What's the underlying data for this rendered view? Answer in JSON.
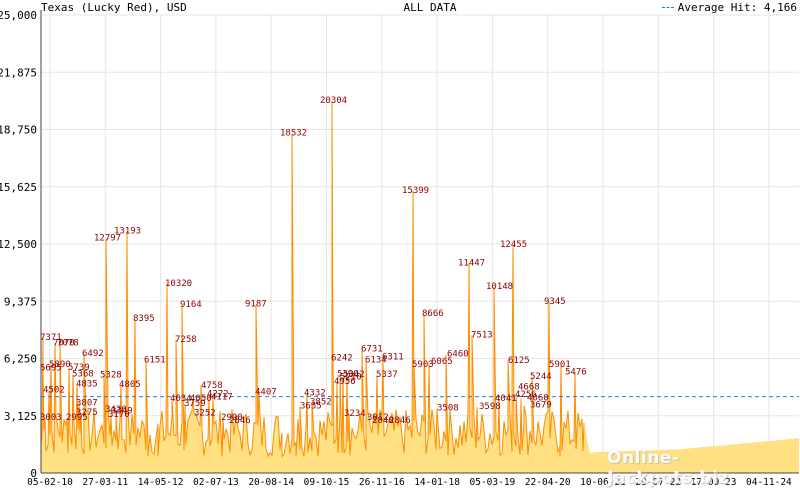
{
  "header": {
    "left_label": "Texas (Lucky Red), USD",
    "center_label": "ALL DATA",
    "legend_label": "Average Hit: 4,166"
  },
  "watermark": "Online-Jackpots.biz",
  "colors": {
    "fill": "#ffe083",
    "line": "#ff8c00",
    "label": "#8b0000",
    "average": "#2a7fd4",
    "grid": "#e6e6e6",
    "axis": "#444444"
  },
  "chart_data": {
    "type": "area",
    "title": "ALL DATA",
    "ylim": [
      0,
      25000
    ],
    "y_ticks": [
      0,
      3125,
      6250,
      9375,
      12500,
      15625,
      18750,
      21875,
      25000
    ],
    "y_tick_labels": [
      "0",
      "3,125",
      "6,250",
      "9,375",
      "12,500",
      "15,625",
      "18,750",
      "21,875",
      "25,000"
    ],
    "x_tick_labels": [
      "05-02-10",
      "27-03-11",
      "14-05-12",
      "02-07-13",
      "20-08-14",
      "09-10-15",
      "26-11-16",
      "14-01-18",
      "05-03-19",
      "22-04-20",
      "10-06-21",
      "29-07-22",
      "17-09-23",
      "04-11-24"
    ],
    "grid": true,
    "average_hit": 4166,
    "legend_position": "top-right",
    "labeled_hits": [
      {
        "value": 7371,
        "label": "7371"
      },
      {
        "value": 5695,
        "label": "5695"
      },
      {
        "value": 4502,
        "label": "4502"
      },
      {
        "value": 3003,
        "label": "3003"
      },
      {
        "value": 5890,
        "label": "5890"
      },
      {
        "value": 7070,
        "label": "7070"
      },
      {
        "value": 7078,
        "label": "7078"
      },
      {
        "value": 2995,
        "label": "2995"
      },
      {
        "value": 5739,
        "label": "5739"
      },
      {
        "value": 5368,
        "label": "5368"
      },
      {
        "value": 4835,
        "label": "4835"
      },
      {
        "value": 3807,
        "label": "3807"
      },
      {
        "value": 3275,
        "label": "3275"
      },
      {
        "value": 6492,
        "label": "6492"
      },
      {
        "value": 12797,
        "label": "12797"
      },
      {
        "value": 5328,
        "label": "5328"
      },
      {
        "value": 3426,
        "label": "3426"
      },
      {
        "value": 3170,
        "label": "3170"
      },
      {
        "value": 3349,
        "label": "3349"
      },
      {
        "value": 13193,
        "label": "13193"
      },
      {
        "value": 4805,
        "label": "4805"
      },
      {
        "value": 8395,
        "label": "8395"
      },
      {
        "value": 6151,
        "label": "6151"
      },
      {
        "value": 10320,
        "label": "10320"
      },
      {
        "value": 4034,
        "label": "4034"
      },
      {
        "value": 7258,
        "label": "7258"
      },
      {
        "value": 9164,
        "label": "9164"
      },
      {
        "value": 3759,
        "label": "3759"
      },
      {
        "value": 4050,
        "label": "4050"
      },
      {
        "value": 3252,
        "label": "3252"
      },
      {
        "value": 4758,
        "label": "4758"
      },
      {
        "value": 4272,
        "label": "4272"
      },
      {
        "value": 4117,
        "label": "4117"
      },
      {
        "value": 2990,
        "label": "2990"
      },
      {
        "value": 2846,
        "label": "2846"
      },
      {
        "value": 9187,
        "label": "9187"
      },
      {
        "value": 4407,
        "label": "4407"
      },
      {
        "value": 18532,
        "label": "18532"
      },
      {
        "value": 3635,
        "label": "3635"
      },
      {
        "value": 4332,
        "label": "4332"
      },
      {
        "value": 3852,
        "label": "3852"
      },
      {
        "value": 20304,
        "label": "20304"
      },
      {
        "value": 6242,
        "label": "6242"
      },
      {
        "value": 4956,
        "label": "4956"
      },
      {
        "value": 5390,
        "label": "5390"
      },
      {
        "value": 5210,
        "label": "5210"
      },
      {
        "value": 5342,
        "label": "5342"
      },
      {
        "value": 3234,
        "label": "3234"
      },
      {
        "value": 6731,
        "label": "6731"
      },
      {
        "value": 6134,
        "label": "6134"
      },
      {
        "value": 3012,
        "label": "3012"
      },
      {
        "value": 2840,
        "label": "2840"
      },
      {
        "value": 5337,
        "label": "5337"
      },
      {
        "value": 6311,
        "label": "6311"
      },
      {
        "value": 2846,
        "label": "2846"
      },
      {
        "value": 15399,
        "label": "15399"
      },
      {
        "value": 5903,
        "label": "5903"
      },
      {
        "value": 8666,
        "label": "8666"
      },
      {
        "value": 6065,
        "label": "6065"
      },
      {
        "value": 3508,
        "label": "3508"
      },
      {
        "value": 6460,
        "label": "6460"
      },
      {
        "value": 11447,
        "label": "11447"
      },
      {
        "value": 7513,
        "label": "7513"
      },
      {
        "value": 3598,
        "label": "3598"
      },
      {
        "value": 10148,
        "label": "10148"
      },
      {
        "value": 4041,
        "label": "4041"
      },
      {
        "value": 12455,
        "label": "12455"
      },
      {
        "value": 6125,
        "label": "6125"
      },
      {
        "value": 4668,
        "label": "4668"
      },
      {
        "value": 4256,
        "label": "4256"
      },
      {
        "value": 4060,
        "label": "4060"
      },
      {
        "value": 3679,
        "label": "3679"
      },
      {
        "value": 5244,
        "label": "5244"
      },
      {
        "value": 9345,
        "label": "9345"
      },
      {
        "value": 5901,
        "label": "5901"
      },
      {
        "value": 5476,
        "label": "5476"
      }
    ]
  }
}
